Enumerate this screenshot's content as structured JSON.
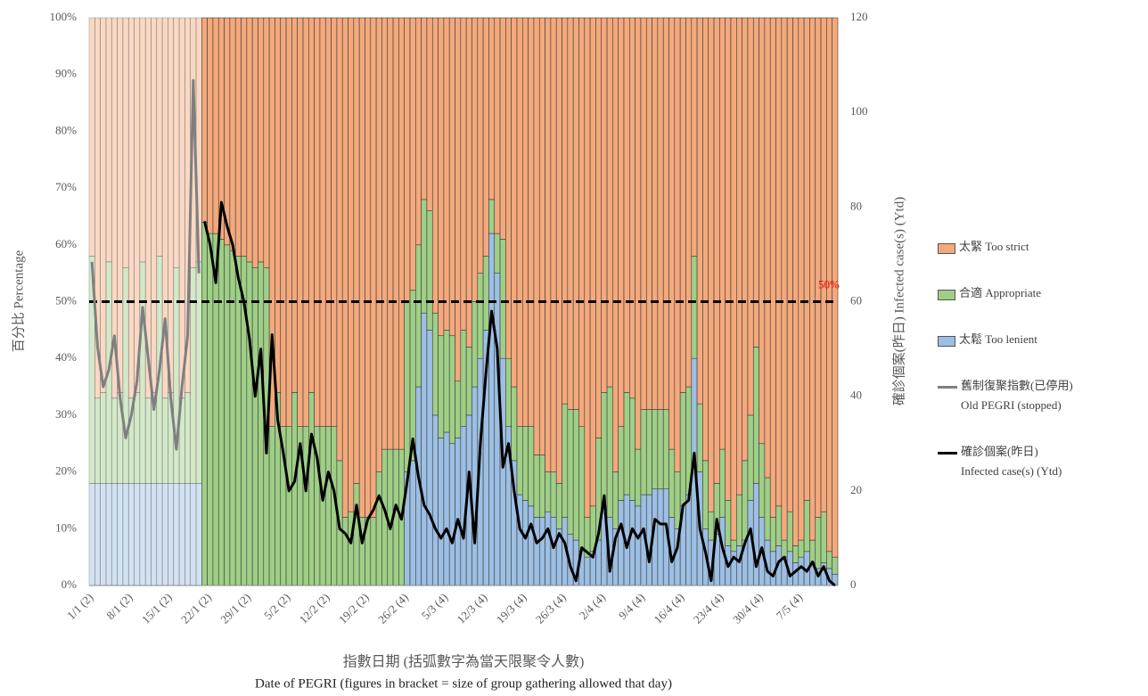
{
  "chart_data": {
    "type": "bar",
    "y_title": "百分比 Percentage",
    "y2_title": "確診個案(昨日) Infected case(s) (Ytd)",
    "x_title": [
      "指數日期 (括弧數字為當天限聚令人數)",
      "Date of PEGRI (figures in bracket = size of group gathering allowed that day)"
    ],
    "categories": [
      "1/1 (2)",
      null,
      null,
      null,
      null,
      null,
      null,
      "8/1 (2)",
      null,
      null,
      null,
      null,
      null,
      null,
      "15/1 (2)",
      null,
      null,
      null,
      null,
      null,
      null,
      "22/1 (2)",
      null,
      null,
      null,
      null,
      null,
      null,
      "29/1 (2)",
      null,
      null,
      null,
      null,
      null,
      null,
      "5/2 (2)",
      null,
      null,
      null,
      null,
      null,
      null,
      "12/2 (2)",
      null,
      null,
      null,
      null,
      null,
      null,
      "19/2 (2)",
      null,
      null,
      null,
      null,
      null,
      null,
      "26/2 (4)",
      null,
      null,
      null,
      null,
      null,
      null,
      "5/3 (4)",
      null,
      null,
      null,
      null,
      null,
      null,
      "12/3 (4)",
      null,
      null,
      null,
      null,
      null,
      null,
      "19/3 (4)",
      null,
      null,
      null,
      null,
      null,
      null,
      "26/3 (4)",
      null,
      null,
      null,
      null,
      null,
      null,
      "2/4 (4)",
      null,
      null,
      null,
      null,
      null,
      null,
      "9/4 (4)",
      null,
      null,
      null,
      null,
      null,
      null,
      "16/4 (4)",
      null,
      null,
      null,
      null,
      null,
      null,
      "23/4 (4)",
      null,
      null,
      null,
      null,
      null,
      null,
      "30/4 (4)",
      null,
      null,
      null,
      null,
      null,
      null,
      "7/5 (4)",
      null,
      null,
      null,
      null,
      null,
      null
    ],
    "series": [
      {
        "name": "太緊 Too strict",
        "type": "bar",
        "color": "#f4a97c",
        "values": [
          42,
          67,
          66,
          43,
          67,
          66,
          44,
          67,
          66,
          43,
          67,
          66,
          42,
          67,
          66,
          44,
          67,
          66,
          44,
          43,
          36,
          38,
          38,
          39,
          40,
          41,
          42,
          42,
          43,
          44,
          43,
          44,
          72,
          66,
          72,
          72,
          66,
          72,
          72,
          66,
          72,
          72,
          72,
          72,
          78,
          88,
          87,
          82,
          88,
          88,
          88,
          80,
          76,
          76,
          76,
          76,
          50,
          48,
          40,
          32,
          34,
          52,
          56,
          55,
          56,
          64,
          55,
          58,
          50,
          45,
          42,
          32,
          38,
          39,
          60,
          65,
          72,
          72,
          72,
          77,
          77,
          80,
          80,
          82,
          68,
          69,
          69,
          72,
          88,
          86,
          74,
          66,
          65,
          80,
          72,
          66,
          67,
          76,
          69,
          69,
          69,
          69,
          69,
          76,
          80,
          66,
          65,
          42,
          68,
          78,
          87,
          82,
          76,
          85,
          92,
          84,
          78,
          70,
          58,
          75,
          81,
          88,
          86,
          92,
          87,
          93,
          92,
          85,
          92,
          88,
          87,
          94,
          95
        ]
      },
      {
        "name": "合適 Appropriate",
        "type": "bar",
        "color": "#9fcf86",
        "values": [
          40,
          15,
          16,
          39,
          15,
          16,
          38,
          15,
          16,
          39,
          15,
          16,
          40,
          15,
          16,
          38,
          15,
          16,
          38,
          39,
          64,
          62,
          62,
          61,
          60,
          59,
          58,
          58,
          57,
          56,
          57,
          56,
          28,
          34,
          28,
          28,
          34,
          28,
          28,
          34,
          28,
          28,
          28,
          28,
          22,
          12,
          13,
          18,
          12,
          12,
          12,
          20,
          24,
          24,
          24,
          24,
          30,
          30,
          25,
          20,
          21,
          18,
          18,
          18,
          19,
          10,
          17,
          12,
          15,
          15,
          13,
          6,
          7,
          21,
          12,
          13,
          12,
          13,
          14,
          11,
          11,
          7,
          8,
          8,
          20,
          22,
          23,
          22,
          7,
          8,
          18,
          20,
          23,
          10,
          13,
          18,
          18,
          10,
          15,
          15,
          14,
          14,
          14,
          12,
          10,
          20,
          19,
          18,
          12,
          12,
          5,
          9,
          12,
          8,
          2,
          9,
          14,
          15,
          24,
          13,
          11,
          6,
          7,
          3,
          7,
          3,
          3,
          9,
          4,
          9,
          9,
          3,
          3
        ]
      },
      {
        "name": "太鬆 Too lenient",
        "type": "bar",
        "color": "#9cbfe3",
        "values": [
          18,
          18,
          18,
          18,
          18,
          18,
          18,
          18,
          18,
          18,
          18,
          18,
          18,
          18,
          18,
          18,
          18,
          18,
          18,
          18,
          0,
          0,
          0,
          0,
          0,
          0,
          0,
          0,
          0,
          0,
          0,
          0,
          0,
          0,
          0,
          0,
          0,
          0,
          0,
          0,
          0,
          0,
          0,
          0,
          0,
          0,
          0,
          0,
          0,
          0,
          0,
          0,
          0,
          0,
          0,
          0,
          20,
          22,
          35,
          48,
          45,
          30,
          26,
          27,
          25,
          26,
          28,
          30,
          35,
          40,
          45,
          62,
          55,
          40,
          28,
          22,
          16,
          15,
          14,
          12,
          12,
          13,
          12,
          10,
          12,
          9,
          8,
          6,
          5,
          6,
          8,
          14,
          12,
          10,
          15,
          16,
          15,
          14,
          16,
          16,
          17,
          17,
          17,
          12,
          10,
          14,
          16,
          40,
          20,
          10,
          8,
          9,
          12,
          7,
          6,
          7,
          8,
          15,
          18,
          12,
          8,
          6,
          7,
          5,
          6,
          4,
          5,
          6,
          4,
          3,
          4,
          3,
          2
        ]
      },
      {
        "name": "舊制復聚指數(已停用)\nOld PEGRI (stopped)",
        "type": "line",
        "color": "#7f7f7f",
        "values": [
          57,
          42,
          35,
          38,
          44,
          33,
          26,
          30,
          36,
          49,
          40,
          31,
          38,
          47,
          33,
          24,
          35,
          44,
          89,
          55,
          null,
          null,
          null,
          null,
          null,
          null,
          null,
          null,
          null,
          null,
          null,
          null,
          null,
          null,
          null,
          null,
          null,
          null,
          null,
          null,
          null,
          null,
          null,
          null,
          null,
          null,
          null,
          null,
          null,
          null,
          null,
          null,
          null,
          null,
          null,
          null,
          null,
          null,
          null,
          null,
          null,
          null,
          null,
          null,
          null,
          null,
          null,
          null,
          null,
          null,
          null,
          null,
          null,
          null,
          null,
          null,
          null,
          null,
          null,
          null,
          null,
          null,
          null,
          null,
          null,
          null,
          null,
          null,
          null,
          null,
          null,
          null,
          null,
          null,
          null,
          null,
          null,
          null,
          null,
          null,
          null,
          null,
          null,
          null,
          null,
          null,
          null,
          null,
          null,
          null,
          null,
          null,
          null,
          null,
          null,
          null,
          null,
          null,
          null,
          null,
          null,
          null,
          null,
          null,
          null,
          null,
          null,
          null,
          null,
          null,
          null,
          null,
          null
        ]
      },
      {
        "name": "確診個案(昨日)\nInfected case(s) (Ytd)",
        "type": "line",
        "axis": "y2",
        "color": "#000000",
        "values": [
          null,
          null,
          null,
          null,
          null,
          null,
          null,
          null,
          null,
          null,
          null,
          null,
          null,
          null,
          null,
          null,
          null,
          null,
          null,
          null,
          77,
          72,
          64,
          81,
          76,
          72,
          65,
          60,
          52,
          40,
          50,
          28,
          53,
          35,
          28,
          20,
          22,
          30,
          20,
          32,
          27,
          18,
          24,
          20,
          12,
          11,
          9,
          17,
          9,
          14,
          16,
          19,
          16,
          12,
          17,
          14,
          22,
          31,
          23,
          17,
          15,
          12,
          10,
          12,
          9,
          14,
          10,
          24,
          9,
          30,
          45,
          58,
          50,
          25,
          30,
          20,
          12,
          10,
          13,
          9,
          10,
          12,
          8,
          11,
          9,
          4,
          1,
          8,
          7,
          6,
          11,
          19,
          3,
          10,
          13,
          8,
          12,
          10,
          12,
          5,
          14,
          13,
          13,
          5,
          8,
          17,
          18,
          28,
          12,
          7,
          1,
          14,
          8,
          4,
          6,
          5,
          9,
          12,
          4,
          8,
          3,
          2,
          5,
          6,
          2,
          3,
          4,
          3,
          5,
          2,
          4,
          1,
          0
        ]
      }
    ],
    "reference_line": {
      "value": 50,
      "label": "50%",
      "color": "#ff0000"
    },
    "ylim": [
      0,
      100
    ],
    "yticks": [
      {
        "value": 0,
        "label": "0%"
      },
      {
        "value": 10,
        "label": "10%"
      },
      {
        "value": 20,
        "label": "20%"
      },
      {
        "value": 30,
        "label": "30%"
      },
      {
        "value": 40,
        "label": "40%"
      },
      {
        "value": 50,
        "label": "50%"
      },
      {
        "value": 60,
        "label": "60%"
      },
      {
        "value": 70,
        "label": "70%"
      },
      {
        "value": 80,
        "label": "80%"
      },
      {
        "value": 90,
        "label": "90%"
      },
      {
        "value": 100,
        "label": "100%"
      }
    ],
    "y2lim": [
      0,
      120
    ],
    "y2ticks": [
      0,
      20,
      40,
      60,
      80,
      100,
      120
    ],
    "grid": false,
    "legend": "right"
  }
}
